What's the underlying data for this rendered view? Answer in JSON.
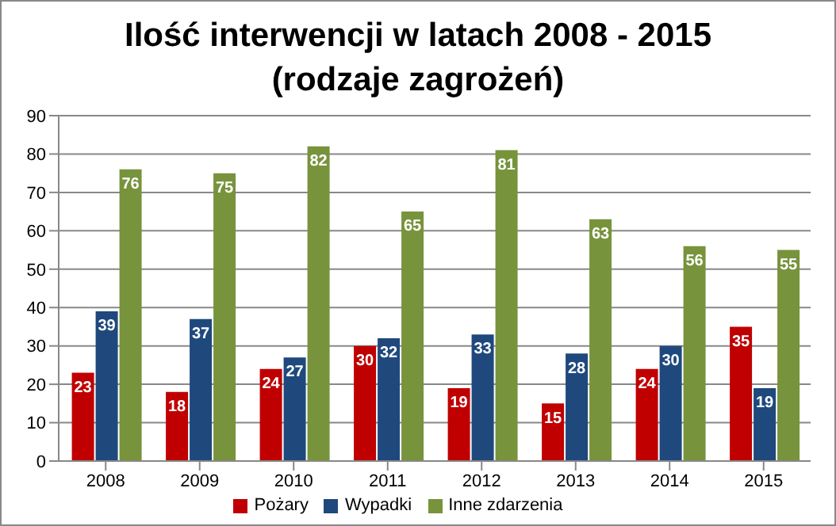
{
  "chart_data": {
    "type": "bar",
    "title": "Ilość interwencji w latach 2008 - 2015 (rodzaje zagrożeń)",
    "categories": [
      "2008",
      "2009",
      "2010",
      "2011",
      "2012",
      "2013",
      "2014",
      "2015"
    ],
    "series": [
      {
        "name": "Pożary",
        "color": "#c00000",
        "values": [
          23,
          18,
          24,
          30,
          19,
          15,
          24,
          35
        ]
      },
      {
        "name": "Wypadki",
        "color": "#1f497d",
        "values": [
          39,
          37,
          27,
          32,
          33,
          28,
          30,
          19
        ]
      },
      {
        "name": "Inne zdarzenia",
        "color": "#77933c",
        "values": [
          76,
          75,
          82,
          65,
          81,
          63,
          56,
          55
        ]
      }
    ],
    "ylim": [
      0,
      90
    ],
    "yticks": [
      0,
      10,
      20,
      30,
      40,
      50,
      60,
      70,
      80,
      90
    ],
    "grid": "y",
    "legend": "bottom",
    "data_labels": true
  }
}
